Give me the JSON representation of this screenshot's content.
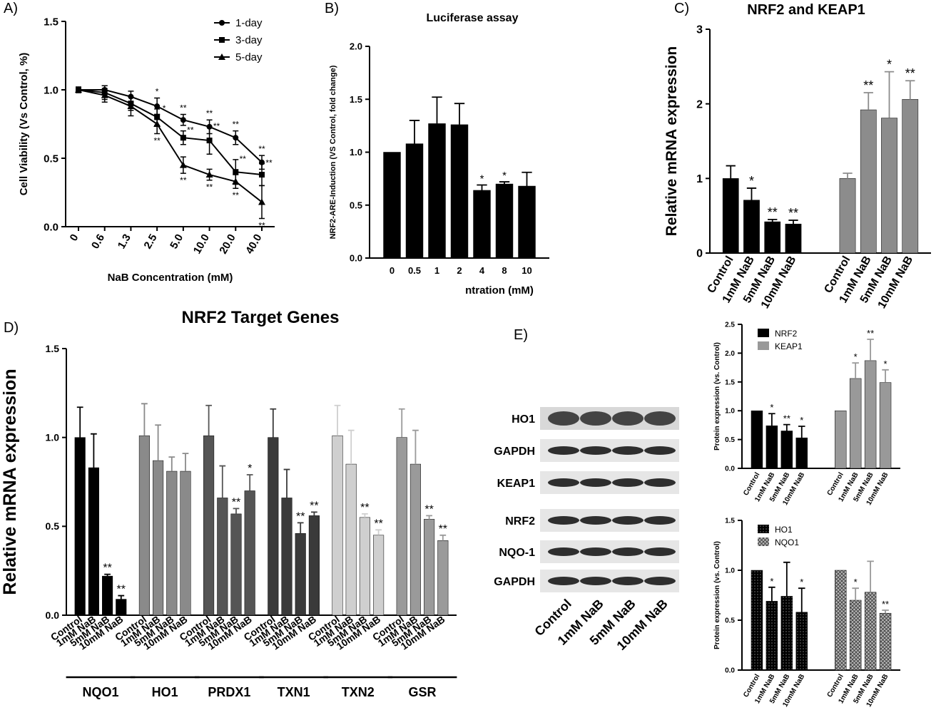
{
  "chart_data": [
    {
      "type": "line",
      "label": "A)",
      "xlabel": "NaB Concentration (mM)",
      "ylabel": "Cell Viability (Vs Control, %)",
      "categories": [
        "0",
        "0.6",
        "1.3",
        "2.5",
        "5.0",
        "10.0",
        "20.0",
        "40.0"
      ],
      "ylim": [
        0,
        1.5
      ],
      "yticks": [
        {
          "value": 0,
          "label": "0.0"
        },
        {
          "value": 0.5,
          "label": "0.5"
        },
        {
          "value": 1,
          "label": "1.0"
        },
        {
          "value": 1.5,
          "label": "1.5"
        }
      ],
      "legend": "upper-right",
      "series": [
        {
          "name": "1-day",
          "marker": "circle",
          "color": "#000",
          "values": [
            1.0,
            1.0,
            0.95,
            0.88,
            0.78,
            0.73,
            0.65,
            0.47
          ],
          "errors": [
            0.02,
            0.03,
            0.04,
            0.06,
            0.04,
            0.05,
            0.05,
            0.05
          ],
          "significance": [
            null,
            null,
            null,
            "*",
            "**",
            "**",
            "**",
            "**"
          ]
        },
        {
          "name": "3-day",
          "marker": "square",
          "color": "#000",
          "values": [
            1.0,
            0.98,
            0.9,
            0.8,
            0.65,
            0.63,
            0.4,
            0.38
          ],
          "errors": [
            0.02,
            0.05,
            0.05,
            0.06,
            0.05,
            0.1,
            0.09,
            0.08
          ],
          "significance": [
            null,
            null,
            null,
            "*",
            "**",
            "**",
            "**",
            "**"
          ]
        },
        {
          "name": "5-day",
          "marker": "triangle",
          "color": "#000",
          "values": [
            1.0,
            0.96,
            0.88,
            0.75,
            0.45,
            0.38,
            0.33,
            0.18
          ],
          "errors": [
            0.02,
            0.05,
            0.07,
            0.07,
            0.06,
            0.04,
            0.05,
            0.12
          ],
          "significance": [
            null,
            null,
            null,
            "**",
            "**",
            "**",
            "**",
            "**"
          ]
        }
      ]
    },
    {
      "type": "bar",
      "label": "B)",
      "title": "Luciferase assay",
      "xlabel": "ntration (mM)",
      "ylabel": "NRF2-ARE-Induction (VS Control, fold change)",
      "categories": [
        "0",
        "0.5",
        "1",
        "2",
        "4",
        "8",
        "10"
      ],
      "ylim": [
        0,
        2
      ],
      "yticks": [
        {
          "value": 0,
          "label": "0.0"
        },
        {
          "value": 0.5,
          "label": "0.5"
        },
        {
          "value": 1,
          "label": "1.0"
        },
        {
          "value": 1.5,
          "label": "1.5"
        },
        {
          "value": 2,
          "label": "2.0"
        }
      ],
      "series": [
        {
          "color": "#000",
          "values": [
            1.0,
            1.08,
            1.27,
            1.26,
            0.64,
            0.7,
            0.68
          ],
          "errors": [
            0,
            0.22,
            0.25,
            0.2,
            0.05,
            0.02,
            0.13
          ],
          "significance": [
            null,
            null,
            null,
            null,
            "*",
            "*",
            null
          ]
        }
      ]
    },
    {
      "type": "bar",
      "label": "C)",
      "title": "NRF2 and KEAP1",
      "ylabel": "Relative mRNA expression",
      "categories": [
        "Control",
        "1mM NaB",
        "5mM NaB",
        "10mM NaB"
      ],
      "ylim": [
        0,
        3
      ],
      "yticks": [
        0,
        1,
        2,
        3
      ],
      "series": [
        {
          "color": "#000",
          "values": [
            1.0,
            0.71,
            0.42,
            0.39
          ],
          "errors": [
            0.17,
            0.16,
            0.03,
            0.05
          ],
          "significance": [
            null,
            "*",
            "**",
            "**"
          ]
        },
        {
          "color": "#8c8c8c",
          "values": [
            1.0,
            1.92,
            1.81,
            2.06
          ],
          "errors": [
            0.07,
            0.23,
            0.62,
            0.25
          ],
          "significance": [
            null,
            "**",
            "*",
            "**"
          ]
        }
      ]
    },
    {
      "type": "bar",
      "label": "D)",
      "title": "NRF2 Target Genes",
      "ylabel": "Relative mRNA expression",
      "categories": [
        "Control",
        "1mM NaB",
        "5mM NaB",
        "10mM NaB"
      ],
      "ylim": [
        0,
        1.5
      ],
      "yticks": [
        {
          "value": 0,
          "label": "0.0"
        },
        {
          "value": 0.5,
          "label": "0.5"
        },
        {
          "value": 1,
          "label": "1.0"
        },
        {
          "value": 1.5,
          "label": "1.5"
        }
      ],
      "legend": "below-groups",
      "series": [
        {
          "name": "NQO1",
          "color": "#000",
          "values": [
            1.0,
            0.83,
            0.22,
            0.09
          ],
          "errors": [
            0.17,
            0.19,
            0.01,
            0.02
          ],
          "significance": [
            null,
            null,
            "**",
            "**"
          ]
        },
        {
          "name": "HO1",
          "color": "#8a8a8a",
          "values": [
            1.01,
            0.87,
            0.81,
            0.81
          ],
          "errors": [
            0.18,
            0.2,
            0.08,
            0.1
          ],
          "significance": [
            null,
            null,
            null,
            null
          ]
        },
        {
          "name": "PRDX1",
          "color": "#555",
          "values": [
            1.01,
            0.66,
            0.57,
            0.7
          ],
          "errors": [
            0.17,
            0.18,
            0.03,
            0.09
          ],
          "significance": [
            null,
            null,
            "**",
            "*"
          ]
        },
        {
          "name": "TXN1",
          "color": "#3a3a3a",
          "values": [
            1.0,
            0.66,
            0.46,
            0.56
          ],
          "errors": [
            0.16,
            0.16,
            0.06,
            0.02
          ],
          "significance": [
            null,
            null,
            "**",
            "**"
          ]
        },
        {
          "name": "TXN2",
          "color": "#cfcfcf",
          "values": [
            1.01,
            0.85,
            0.55,
            0.45
          ],
          "errors": [
            0.17,
            0.19,
            0.02,
            0.03
          ],
          "significance": [
            null,
            null,
            "**",
            "**"
          ]
        },
        {
          "name": "GSR",
          "color": "#9a9a9a",
          "values": [
            1.0,
            0.85,
            0.54,
            0.42
          ],
          "errors": [
            0.16,
            0.19,
            0.02,
            0.03
          ],
          "significance": [
            null,
            null,
            "**",
            "**"
          ]
        }
      ]
    },
    {
      "type": "bar",
      "ylabel": "Protein expression (vs. Control)",
      "categories": [
        "Control",
        "1mM NaB",
        "5mM NaB",
        "10mM NaB"
      ],
      "ylim": [
        0,
        2.5
      ],
      "yticks": [
        {
          "value": 0,
          "label": "0.0"
        },
        {
          "value": 0.5,
          "label": "0.5"
        },
        {
          "value": 1,
          "label": "1.0"
        },
        {
          "value": 1.5,
          "label": "1.5"
        },
        {
          "value": 2,
          "label": "2.0"
        },
        {
          "value": 2.5,
          "label": "2.5"
        }
      ],
      "legend": "upper-left",
      "series": [
        {
          "name": "NRF2",
          "color": "#000",
          "values": [
            1.0,
            0.74,
            0.65,
            0.53
          ],
          "errors": [
            0,
            0.21,
            0.11,
            0.2
          ],
          "significance": [
            null,
            "*",
            "**",
            "*"
          ]
        },
        {
          "name": "KEAP1",
          "color": "#999",
          "values": [
            1.0,
            1.56,
            1.87,
            1.49
          ],
          "errors": [
            0,
            0.27,
            0.37,
            0.22
          ],
          "significance": [
            null,
            "*",
            "**",
            "*"
          ]
        }
      ]
    },
    {
      "type": "bar",
      "ylabel": "Protein expression (vs. Control)",
      "categories": [
        "Control",
        "1mM NaB",
        "5mM NaB",
        "10mM NaB"
      ],
      "ylim": [
        0,
        1.5
      ],
      "yticks": [
        {
          "value": 0,
          "label": "0.0"
        },
        {
          "value": 0.5,
          "label": "0.5"
        },
        {
          "value": 1,
          "label": "1.0"
        },
        {
          "value": 1.5,
          "label": "1.5"
        }
      ],
      "legend": "upper-left",
      "series": [
        {
          "name": "HO1",
          "color": "#000",
          "pattern": "dots",
          "values": [
            1.0,
            0.69,
            0.74,
            0.58
          ],
          "errors": [
            0,
            0.14,
            0.34,
            0.24
          ],
          "significance": [
            null,
            "*",
            null,
            "*"
          ]
        },
        {
          "name": "NQO1",
          "color": "#999",
          "pattern": "hatch",
          "values": [
            1.0,
            0.7,
            0.78,
            0.57
          ],
          "errors": [
            0,
            0.12,
            0.31,
            0.03
          ],
          "significance": [
            null,
            "*",
            null,
            "**"
          ]
        }
      ]
    }
  ],
  "blot": {
    "label": "E)",
    "rows": [
      "HO1",
      "GAPDH",
      "KEAP1",
      "NRF2",
      "NQO-1",
      "GAPDH"
    ],
    "lanes": [
      "Control",
      "1mM NaB",
      "5mM NaB",
      "10mM NaB"
    ]
  }
}
